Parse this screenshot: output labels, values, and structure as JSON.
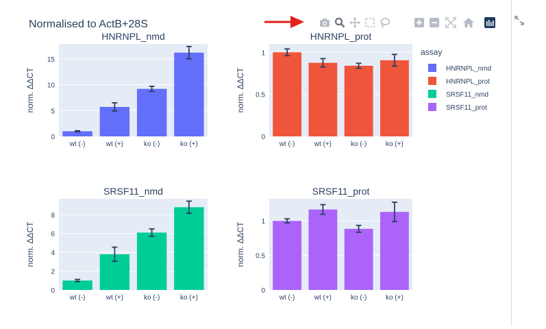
{
  "figure": {
    "title": "Normalised to ActB+28S",
    "legend_title": "assay",
    "legend": [
      {
        "label": "HNRNPL_nmd",
        "color": "#636efa"
      },
      {
        "label": "HNRNPL_prot",
        "color": "#ef553b"
      },
      {
        "label": "SRSF11_nmd",
        "color": "#00cc96"
      },
      {
        "label": "SRSF11_prot",
        "color": "#ab63fa"
      }
    ]
  },
  "modebar": {
    "buttons": [
      "camera-icon",
      "zoom-icon",
      "pan-icon",
      "box-select-icon",
      "lasso-icon",
      "zoom-in-icon",
      "zoom-out-icon",
      "autoscale-icon",
      "reset-axes-icon",
      "plotly-logo-icon"
    ]
  },
  "chart_data": [
    {
      "type": "bar",
      "title": "HNRNPL_nmd",
      "color": "#636efa",
      "categories": [
        "wt (-)",
        "wt (+)",
        "ko (-)",
        "ko (+)"
      ],
      "values": [
        1.0,
        5.7,
        9.2,
        16.2
      ],
      "errors": [
        0.1,
        0.8,
        0.5,
        1.2
      ],
      "ylabel": "norm. ΔΔCT",
      "ylim": [
        0,
        17.9
      ],
      "yticks": [
        0,
        5,
        10,
        15
      ],
      "ytick_labels": [
        "0",
        "5",
        "10",
        "15"
      ]
    },
    {
      "type": "bar",
      "title": "HNRNPL_prot",
      "color": "#ef553b",
      "categories": [
        "wt (-)",
        "wt (+)",
        "ko (-)",
        "ko (+)"
      ],
      "values": [
        1.0,
        0.875,
        0.84,
        0.905
      ],
      "errors": [
        0.04,
        0.05,
        0.03,
        0.07
      ],
      "ylabel": "norm. ΔΔCT",
      "ylim": [
        0,
        1.1
      ],
      "yticks": [
        0,
        0.5,
        1
      ],
      "ytick_labels": [
        "0",
        "0.5",
        "1"
      ]
    },
    {
      "type": "bar",
      "title": "SRSF11_nmd",
      "color": "#00cc96",
      "categories": [
        "wt (-)",
        "wt (+)",
        "ko (-)",
        "ko (+)"
      ],
      "values": [
        1.0,
        3.8,
        6.1,
        8.8
      ],
      "errors": [
        0.12,
        0.75,
        0.4,
        0.65
      ],
      "ylabel": "norm. ΔΔCT",
      "ylim": [
        0,
        9.7
      ],
      "yticks": [
        0,
        2,
        4,
        6,
        8
      ],
      "ytick_labels": [
        "0",
        "2",
        "4",
        "6",
        "8"
      ]
    },
    {
      "type": "bar",
      "title": "SRSF11_prot",
      "color": "#ab63fa",
      "categories": [
        "wt (-)",
        "wt (+)",
        "ko (-)",
        "ko (+)"
      ],
      "values": [
        1.0,
        1.165,
        0.885,
        1.13
      ],
      "errors": [
        0.03,
        0.07,
        0.05,
        0.14
      ],
      "ylabel": "norm. ΔΔCT",
      "ylim": [
        0,
        1.32
      ],
      "yticks": [
        0,
        0.5,
        1
      ],
      "ytick_labels": [
        "0",
        "0.5",
        "1"
      ]
    }
  ]
}
